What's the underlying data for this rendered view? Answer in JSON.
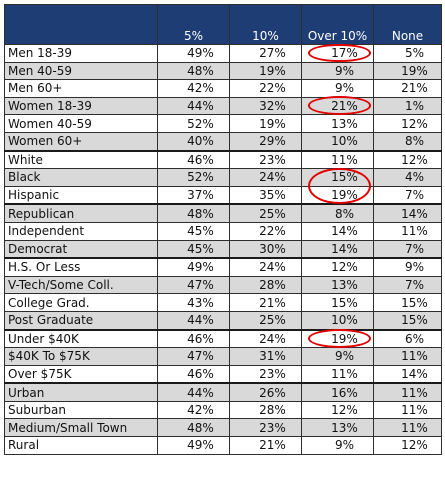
{
  "chart_data": {
    "type": "table",
    "columns": [
      "",
      "5%",
      "10%",
      "Over 10%",
      "None"
    ],
    "rows": [
      {
        "label": "Men 18-39",
        "values": [
          "49%",
          "27%",
          "17%",
          "5%"
        ],
        "shade": "white"
      },
      {
        "label": "Men 40-59",
        "values": [
          "48%",
          "19%",
          "9%",
          "19%"
        ],
        "shade": "shade"
      },
      {
        "label": "Men 60+",
        "values": [
          "42%",
          "22%",
          "9%",
          "21%"
        ],
        "shade": "white"
      },
      {
        "label": "Women 18-39",
        "values": [
          "44%",
          "32%",
          "21%",
          "1%"
        ],
        "shade": "shade"
      },
      {
        "label": "Women 40-59",
        "values": [
          "52%",
          "19%",
          "13%",
          "12%"
        ],
        "shade": "white"
      },
      {
        "label": "Women 60+",
        "values": [
          "40%",
          "29%",
          "10%",
          "8%"
        ],
        "shade": "shade"
      },
      {
        "label": "White",
        "values": [
          "46%",
          "23%",
          "11%",
          "12%"
        ],
        "shade": "white",
        "group_start": true
      },
      {
        "label": "Black",
        "values": [
          "52%",
          "24%",
          "15%",
          "4%"
        ],
        "shade": "shade"
      },
      {
        "label": "Hispanic",
        "values": [
          "37%",
          "35%",
          "19%",
          "7%"
        ],
        "shade": "white"
      },
      {
        "label": "Republican",
        "values": [
          "48%",
          "25%",
          "8%",
          "14%"
        ],
        "shade": "shade",
        "group_start": true
      },
      {
        "label": "Independent",
        "values": [
          "45%",
          "22%",
          "14%",
          "11%"
        ],
        "shade": "white"
      },
      {
        "label": "Democrat",
        "values": [
          "45%",
          "30%",
          "14%",
          "7%"
        ],
        "shade": "shade"
      },
      {
        "label": "H.S. Or Less",
        "values": [
          "49%",
          "24%",
          "12%",
          "9%"
        ],
        "shade": "white",
        "group_start": true
      },
      {
        "label": "V-Tech/Some Coll.",
        "values": [
          "47%",
          "28%",
          "13%",
          "7%"
        ],
        "shade": "shade"
      },
      {
        "label": "College Grad.",
        "values": [
          "43%",
          "21%",
          "15%",
          "15%"
        ],
        "shade": "white"
      },
      {
        "label": "Post Graduate",
        "values": [
          "44%",
          "25%",
          "10%",
          "15%"
        ],
        "shade": "shade"
      },
      {
        "label": "Under $40K",
        "values": [
          "46%",
          "24%",
          "19%",
          "6%"
        ],
        "shade": "white",
        "group_start": true
      },
      {
        "label": "$40K To $75K",
        "values": [
          "47%",
          "31%",
          "9%",
          "11%"
        ],
        "shade": "shade"
      },
      {
        "label": "Over $75K",
        "values": [
          "46%",
          "23%",
          "11%",
          "14%"
        ],
        "shade": "white"
      },
      {
        "label": "Urban",
        "values": [
          "44%",
          "26%",
          "16%",
          "11%"
        ],
        "shade": "shade",
        "group_start": true
      },
      {
        "label": "Suburban",
        "values": [
          "42%",
          "28%",
          "12%",
          "11%"
        ],
        "shade": "white"
      },
      {
        "label": "Medium/Small Town",
        "values": [
          "48%",
          "23%",
          "13%",
          "11%"
        ],
        "shade": "shade"
      },
      {
        "label": "Rural",
        "values": [
          "49%",
          "21%",
          "9%",
          "12%"
        ],
        "shade": "white"
      }
    ],
    "highlights": [
      {
        "column": "Over 10%",
        "rows": [
          "Men 18-39"
        ]
      },
      {
        "column": "Over 10%",
        "rows": [
          "Women 18-39"
        ]
      },
      {
        "column": "Over 10%",
        "rows": [
          "Black",
          "Hispanic"
        ]
      },
      {
        "column": "Over 10%",
        "rows": [
          "Under $40K"
        ]
      }
    ],
    "colors": {
      "header_bg": "#1e3d75",
      "header_text": "#ffffff",
      "row_shade": "#d9d9d9",
      "highlight": "#e00000"
    }
  }
}
